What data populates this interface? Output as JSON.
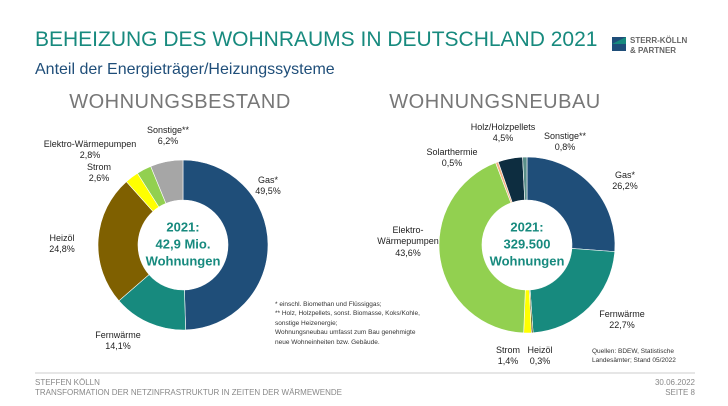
{
  "header": {
    "title": "BEHEIZUNG DES WOHNRAUMS IN DEUTSCHLAND 2021",
    "subtitle": "Anteil der Energieträger/Heizungssysteme",
    "logo": "STERR-KÖLLN\n& PARTNER"
  },
  "chart_data": [
    {
      "type": "pie",
      "title": "WOHNUNGSBESTAND",
      "center_label": "2021:\n42,9 Mio.\nWohnungen",
      "categories": [
        "Gas*",
        "Fernwärme",
        "Heizöl",
        "Strom",
        "Elektro-Wärmepumpen",
        "Sonstige**"
      ],
      "values": [
        49.5,
        14.1,
        24.8,
        2.6,
        2.8,
        6.2
      ],
      "value_labels": [
        "49,5%",
        "14,1%",
        "24,8%",
        "2,6%",
        "2,8%",
        "6,2%"
      ],
      "colors": [
        "#1f4e79",
        "#178a7e",
        "#7f6000",
        "#ffff00",
        "#92d050",
        "#a6a6a6"
      ]
    },
    {
      "type": "pie",
      "title": "WOHNUNGSNEUBAU",
      "center_label": "2021:\n329.500\nWohnungen",
      "categories": [
        "Gas*",
        "Fernwärme",
        "Heizöl",
        "Strom",
        "Elektro-\nWärmepumpen",
        "Solarthermie",
        "Holz/Holzpellets",
        "Sonstige**"
      ],
      "values": [
        26.2,
        22.7,
        0.3,
        1.4,
        43.6,
        0.5,
        4.5,
        0.8
      ],
      "value_labels": [
        "26,2%",
        "22,7%",
        "0,3%",
        "1,4%",
        "43,6%",
        "0,5%",
        "4,5%",
        "0,8%"
      ],
      "colors": [
        "#1f4e79",
        "#178a7e",
        "#4d4d00",
        "#ffff00",
        "#92d050",
        "#f4b183",
        "#0d2d40",
        "#5a8f8a"
      ]
    }
  ],
  "footnote": "* einschl. Biomethan und Flüssiggas;\n** Holz, Holzpellets, sonst. Biomasse, Koks/Kohle, sonstige Heizenergie;\nWohnungsneubau umfasst zum Bau genehmigte neue Wohneinheiten bzw. Gebäude.",
  "source": "Quellen: BDEW, Statistische Landesämter; Stand 05/2022",
  "footer": {
    "author": "STEFFEN KÖLLN",
    "talk": "TRANSFORMATION DER NETZINFRASTRUKTUR IN ZEITEN DER WÄRMEWENDE",
    "date": "30.06.2022",
    "page": "SEITE 8"
  }
}
